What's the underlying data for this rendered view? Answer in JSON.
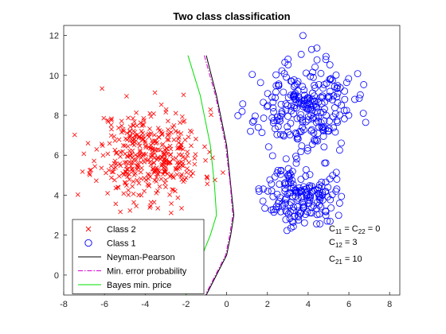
{
  "chart_data": {
    "type": "scatter",
    "title": "Two class classification",
    "xlabel": "",
    "ylabel": "",
    "xlim": [
      -8,
      8.5
    ],
    "ylim": [
      -1,
      12.5
    ],
    "xticks": [
      -8,
      -6,
      -4,
      -2,
      0,
      2,
      4,
      6,
      8
    ],
    "yticks": [
      0,
      2,
      4,
      6,
      8,
      10,
      12
    ],
    "grid": false,
    "legend_position": "bottom-left",
    "series": [
      {
        "name": "Class 2",
        "kind": "scatter",
        "marker": "x",
        "color": "#ff0000",
        "cluster": {
          "center": [
            -3.8,
            6.0
          ],
          "spread": [
            1.3,
            1.15
          ],
          "count": 420,
          "seed": 11
        }
      },
      {
        "name": "Class 1",
        "kind": "scatter",
        "marker": "o",
        "color": "#0000ff",
        "clusters": [
          {
            "center": [
              3.8,
              8.3
            ],
            "spread": [
              1.2,
              1.2
            ],
            "count": 260,
            "seed": 23
          },
          {
            "center": [
              3.6,
              3.9
            ],
            "spread": [
              0.85,
              0.7
            ],
            "count": 170,
            "seed": 37
          }
        ]
      },
      {
        "name": "Neyman-Pearson",
        "kind": "line",
        "color": "#000000",
        "dash": "solid",
        "x": [
          -1.0,
          -0.5,
          0.0,
          0.2,
          0.35,
          0.2,
          0.0,
          -0.5,
          -1.0,
          -1.5
        ],
        "y": [
          11.0,
          9.0,
          6.5,
          4.5,
          3.0,
          2.0,
          1.0,
          0.0,
          -1.0,
          -1.9
        ]
      },
      {
        "name": "Min. error probability",
        "kind": "line",
        "color": "#d400d4",
        "dash": "dashdot",
        "x": [
          -1.1,
          -0.55,
          -0.05,
          0.18,
          0.3,
          0.15,
          -0.05,
          -0.55,
          -1.05,
          -1.55
        ],
        "y": [
          11.0,
          9.0,
          6.5,
          4.5,
          3.0,
          2.0,
          1.0,
          0.0,
          -1.0,
          -1.9
        ]
      },
      {
        "name": "Bayes min. price",
        "kind": "line",
        "color": "#00e000",
        "dash": "solid",
        "x": [
          -1.9,
          -1.3,
          -0.8,
          -0.6,
          -0.5,
          -0.8,
          -1.2,
          -1.6,
          -2.0,
          -2.3
        ],
        "y": [
          11.0,
          9.0,
          6.5,
          4.5,
          3.0,
          2.0,
          1.0,
          0.0,
          -1.0,
          -1.9
        ]
      }
    ],
    "annotations": [
      {
        "id": "c11c22",
        "base": "C",
        "sub1": "11",
        "mid": " = C",
        "sub2": "22",
        "tail": " = 0"
      },
      {
        "id": "c12",
        "base": "C",
        "sub1": "12",
        "tail": " = 3"
      },
      {
        "id": "c21",
        "base": "C",
        "sub1": "21",
        "tail": " = 10"
      }
    ]
  }
}
